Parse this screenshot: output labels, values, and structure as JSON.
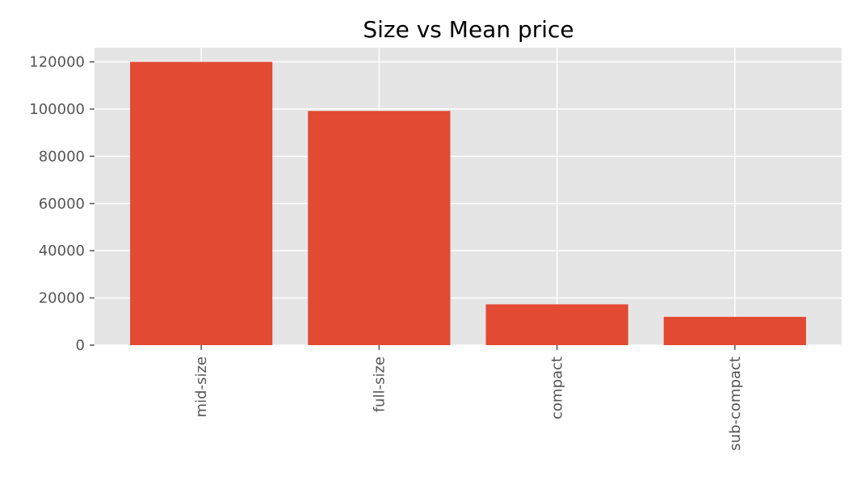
{
  "chart_data": {
    "type": "bar",
    "title": "Size vs Mean price",
    "xlabel": "",
    "ylabel": "",
    "categories": [
      "mid-size",
      "full-size",
      "compact",
      "sub-compact"
    ],
    "values": [
      120000,
      99200,
      17300,
      12000
    ],
    "ylim": [
      0,
      126000
    ],
    "yticks": [
      0,
      20000,
      40000,
      60000,
      80000,
      100000,
      120000
    ],
    "grid": true,
    "colors": {
      "bar": "#e24a33",
      "plot_bg": "#e5e5e5",
      "grid": "#ffffff"
    }
  }
}
